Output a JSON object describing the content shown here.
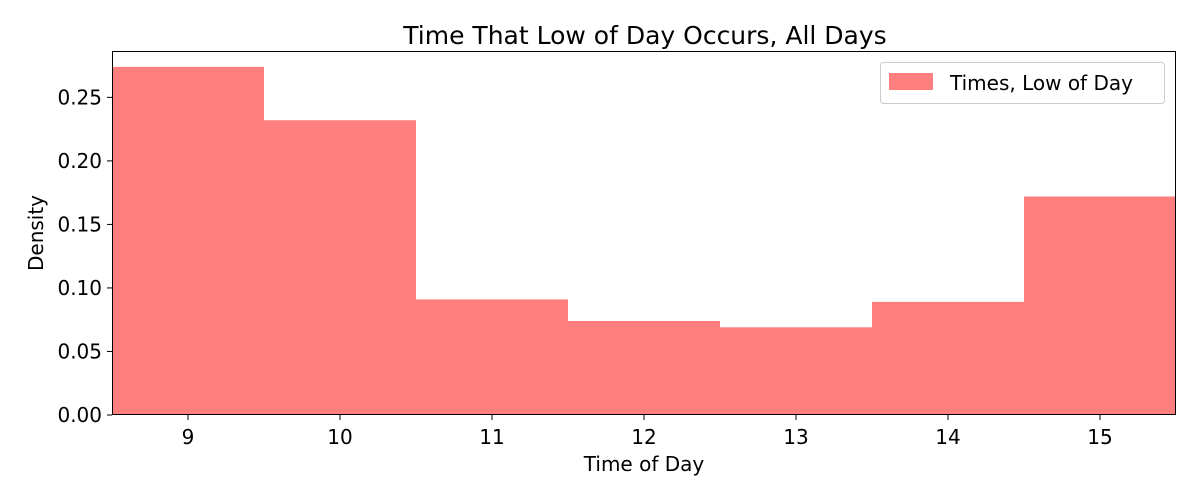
{
  "chart_data": {
    "type": "bar",
    "title": "Time That Low of Day Occurs, All Days",
    "xlabel": "Time of Day",
    "ylabel": "Density",
    "categories": [
      9,
      10,
      11,
      12,
      13,
      14,
      15
    ],
    "series": [
      {
        "name": "Times, Low of Day",
        "values": [
          0.274,
          0.232,
          0.091,
          0.074,
          0.069,
          0.089,
          0.172
        ],
        "color": "#ff7f7f"
      }
    ],
    "xlim": [
      8.5,
      15.5
    ],
    "ylim": [
      0,
      0.2857
    ],
    "xticks": [
      "9",
      "10",
      "11",
      "12",
      "13",
      "14",
      "15"
    ],
    "yticks": [
      "0.00",
      "0.05",
      "0.10",
      "0.15",
      "0.20",
      "0.25"
    ],
    "grid": false,
    "legend_position": "top-right"
  }
}
